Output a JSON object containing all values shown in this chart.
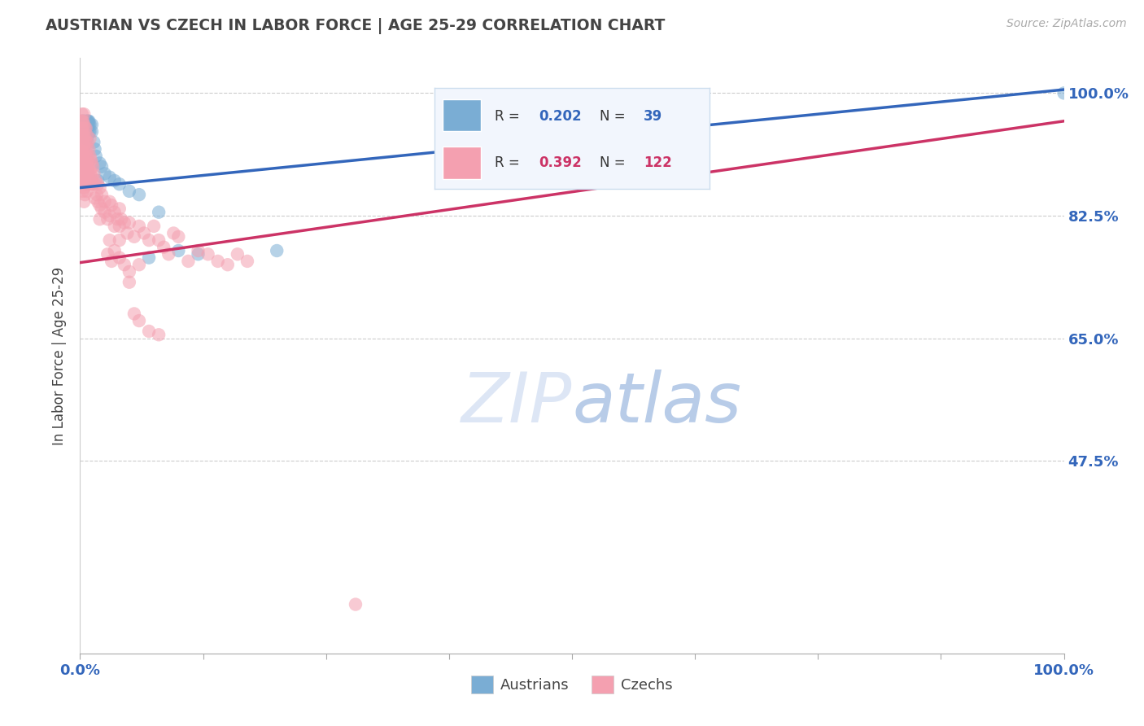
{
  "title": "AUSTRIAN VS CZECH IN LABOR FORCE | AGE 25-29 CORRELATION CHART",
  "source": "Source: ZipAtlas.com",
  "ylabel": "In Labor Force | Age 25-29",
  "ytick_labels": [
    "100.0%",
    "82.5%",
    "65.0%",
    "47.5%"
  ],
  "ytick_values": [
    1.0,
    0.825,
    0.65,
    0.475
  ],
  "xlim": [
    0.0,
    1.0
  ],
  "ylim": [
    0.2,
    1.05
  ],
  "blue_color": "#7aadd4",
  "pink_color": "#f4a0b0",
  "blue_line_color": "#3366bb",
  "pink_line_color": "#cc3366",
  "R_blue": 0.202,
  "N_blue": 39,
  "R_pink": 0.392,
  "N_pink": 122,
  "title_color": "#444444",
  "axis_label_color": "#3366bb",
  "grid_color": "#cccccc",
  "blue_scatter": [
    [
      0.002,
      0.96
    ],
    [
      0.003,
      0.96
    ],
    [
      0.004,
      0.96
    ],
    [
      0.005,
      0.955
    ],
    [
      0.005,
      0.945
    ],
    [
      0.006,
      0.96
    ],
    [
      0.006,
      0.955
    ],
    [
      0.007,
      0.96
    ],
    [
      0.007,
      0.955
    ],
    [
      0.007,
      0.945
    ],
    [
      0.007,
      0.935
    ],
    [
      0.008,
      0.96
    ],
    [
      0.008,
      0.96
    ],
    [
      0.008,
      0.955
    ],
    [
      0.009,
      0.96
    ],
    [
      0.009,
      0.955
    ],
    [
      0.009,
      0.945
    ],
    [
      0.01,
      0.955
    ],
    [
      0.01,
      0.945
    ],
    [
      0.012,
      0.955
    ],
    [
      0.012,
      0.945
    ],
    [
      0.014,
      0.93
    ],
    [
      0.015,
      0.92
    ],
    [
      0.016,
      0.91
    ],
    [
      0.018,
      0.875
    ],
    [
      0.02,
      0.9
    ],
    [
      0.022,
      0.895
    ],
    [
      0.025,
      0.885
    ],
    [
      0.03,
      0.88
    ],
    [
      0.035,
      0.875
    ],
    [
      0.04,
      0.87
    ],
    [
      0.05,
      0.86
    ],
    [
      0.06,
      0.855
    ],
    [
      0.07,
      0.765
    ],
    [
      0.08,
      0.83
    ],
    [
      0.1,
      0.775
    ],
    [
      0.12,
      0.77
    ],
    [
      0.2,
      0.775
    ],
    [
      1.0,
      1.0
    ]
  ],
  "pink_scatter": [
    [
      0.001,
      0.96
    ],
    [
      0.001,
      0.95
    ],
    [
      0.001,
      0.94
    ],
    [
      0.001,
      0.93
    ],
    [
      0.001,
      0.915
    ],
    [
      0.001,
      0.905
    ],
    [
      0.002,
      0.97
    ],
    [
      0.002,
      0.96
    ],
    [
      0.002,
      0.95
    ],
    [
      0.002,
      0.94
    ],
    [
      0.002,
      0.93
    ],
    [
      0.002,
      0.92
    ],
    [
      0.002,
      0.91
    ],
    [
      0.002,
      0.905
    ],
    [
      0.002,
      0.895
    ],
    [
      0.002,
      0.885
    ],
    [
      0.002,
      0.875
    ],
    [
      0.003,
      0.96
    ],
    [
      0.003,
      0.95
    ],
    [
      0.003,
      0.94
    ],
    [
      0.003,
      0.93
    ],
    [
      0.003,
      0.92
    ],
    [
      0.003,
      0.91
    ],
    [
      0.003,
      0.9
    ],
    [
      0.003,
      0.89
    ],
    [
      0.003,
      0.875
    ],
    [
      0.003,
      0.86
    ],
    [
      0.004,
      0.97
    ],
    [
      0.004,
      0.955
    ],
    [
      0.004,
      0.94
    ],
    [
      0.004,
      0.925
    ],
    [
      0.004,
      0.91
    ],
    [
      0.004,
      0.895
    ],
    [
      0.004,
      0.88
    ],
    [
      0.004,
      0.865
    ],
    [
      0.004,
      0.845
    ],
    [
      0.005,
      0.95
    ],
    [
      0.005,
      0.935
    ],
    [
      0.005,
      0.92
    ],
    [
      0.005,
      0.905
    ],
    [
      0.005,
      0.89
    ],
    [
      0.005,
      0.875
    ],
    [
      0.005,
      0.855
    ],
    [
      0.006,
      0.95
    ],
    [
      0.006,
      0.93
    ],
    [
      0.006,
      0.91
    ],
    [
      0.006,
      0.895
    ],
    [
      0.006,
      0.87
    ],
    [
      0.007,
      0.94
    ],
    [
      0.007,
      0.92
    ],
    [
      0.007,
      0.9
    ],
    [
      0.007,
      0.88
    ],
    [
      0.007,
      0.86
    ],
    [
      0.008,
      0.93
    ],
    [
      0.008,
      0.91
    ],
    [
      0.008,
      0.89
    ],
    [
      0.008,
      0.87
    ],
    [
      0.009,
      0.92
    ],
    [
      0.009,
      0.9
    ],
    [
      0.009,
      0.88
    ],
    [
      0.01,
      0.935
    ],
    [
      0.01,
      0.91
    ],
    [
      0.01,
      0.89
    ],
    [
      0.01,
      0.87
    ],
    [
      0.011,
      0.905
    ],
    [
      0.011,
      0.885
    ],
    [
      0.012,
      0.9
    ],
    [
      0.012,
      0.88
    ],
    [
      0.013,
      0.895
    ],
    [
      0.013,
      0.87
    ],
    [
      0.014,
      0.885
    ],
    [
      0.015,
      0.87
    ],
    [
      0.015,
      0.85
    ],
    [
      0.016,
      0.875
    ],
    [
      0.017,
      0.855
    ],
    [
      0.018,
      0.87
    ],
    [
      0.018,
      0.845
    ],
    [
      0.02,
      0.865
    ],
    [
      0.02,
      0.84
    ],
    [
      0.02,
      0.82
    ],
    [
      0.022,
      0.855
    ],
    [
      0.022,
      0.835
    ],
    [
      0.025,
      0.845
    ],
    [
      0.025,
      0.83
    ],
    [
      0.028,
      0.82
    ],
    [
      0.03,
      0.845
    ],
    [
      0.03,
      0.825
    ],
    [
      0.032,
      0.84
    ],
    [
      0.035,
      0.83
    ],
    [
      0.035,
      0.81
    ],
    [
      0.038,
      0.82
    ],
    [
      0.04,
      0.835
    ],
    [
      0.04,
      0.81
    ],
    [
      0.04,
      0.79
    ],
    [
      0.042,
      0.82
    ],
    [
      0.045,
      0.815
    ],
    [
      0.048,
      0.8
    ],
    [
      0.05,
      0.815
    ],
    [
      0.055,
      0.795
    ],
    [
      0.06,
      0.81
    ],
    [
      0.065,
      0.8
    ],
    [
      0.07,
      0.79
    ],
    [
      0.075,
      0.81
    ],
    [
      0.08,
      0.79
    ],
    [
      0.085,
      0.78
    ],
    [
      0.09,
      0.77
    ],
    [
      0.095,
      0.8
    ],
    [
      0.1,
      0.795
    ],
    [
      0.11,
      0.76
    ],
    [
      0.12,
      0.775
    ],
    [
      0.13,
      0.77
    ],
    [
      0.14,
      0.76
    ],
    [
      0.15,
      0.755
    ],
    [
      0.16,
      0.77
    ],
    [
      0.17,
      0.76
    ],
    [
      0.03,
      0.79
    ],
    [
      0.035,
      0.775
    ],
    [
      0.04,
      0.765
    ],
    [
      0.045,
      0.755
    ],
    [
      0.05,
      0.745
    ],
    [
      0.06,
      0.755
    ],
    [
      0.028,
      0.77
    ],
    [
      0.032,
      0.76
    ],
    [
      0.05,
      0.73
    ],
    [
      0.055,
      0.685
    ],
    [
      0.06,
      0.675
    ],
    [
      0.07,
      0.66
    ],
    [
      0.08,
      0.655
    ],
    [
      0.28,
      0.27
    ]
  ]
}
